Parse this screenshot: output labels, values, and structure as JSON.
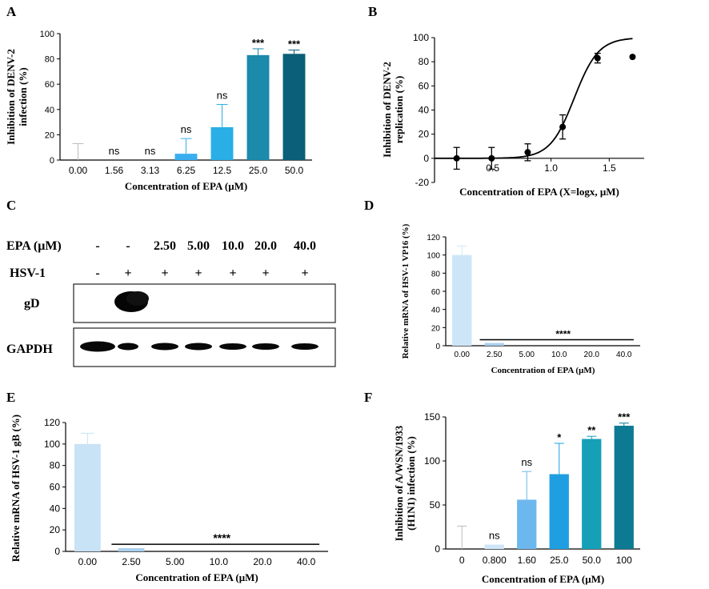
{
  "panels": {
    "A": "A",
    "B": "B",
    "C": "C",
    "D": "D",
    "E": "E",
    "F": "F"
  },
  "chart_data": [
    {
      "id": "A",
      "type": "bar",
      "ylabel": [
        "Inhibition of DENV-2",
        "infection (%)"
      ],
      "xlabel": "Concentration of EPA (μM)",
      "categories": [
        "0.00",
        "1.56",
        "3.13",
        "6.25",
        "12.5",
        "25.0",
        "50.0"
      ],
      "values": [
        0,
        0,
        0,
        5,
        26,
        83,
        84
      ],
      "errors": [
        13,
        0,
        0,
        12,
        18,
        5,
        3
      ],
      "significance": [
        "",
        "ns",
        "ns",
        "ns",
        "ns",
        "***",
        "***"
      ],
      "colors": [
        "#ffffff",
        "#ffffff",
        "#ffffff",
        "#3aaef0",
        "#29aee6",
        "#1b8aab",
        "#0b5f78"
      ],
      "ylim": [
        0,
        100
      ],
      "yticks": [
        0,
        20,
        40,
        60,
        80,
        100
      ]
    },
    {
      "id": "B",
      "type": "scatter",
      "ylabel": [
        "Inhibition of DENV-2",
        "replication (%)"
      ],
      "xlabel": "Concentration of EPA (X=logx, μM)",
      "x": [
        0.19,
        0.49,
        0.8,
        1.1,
        1.4,
        1.7
      ],
      "y": [
        0,
        0,
        5,
        26,
        83,
        84
      ],
      "errors": [
        9,
        9,
        7,
        10,
        4,
        0
      ],
      "fit": {
        "bottom": 0,
        "top": 100,
        "logIC50": 1.2,
        "hillslope": 4.2
      },
      "xlim": [
        0,
        1.8
      ],
      "ylim": [
        -20,
        100
      ],
      "xticks": [
        "0.5",
        "1.0",
        "1.5"
      ],
      "yticks": [
        -20,
        0,
        20,
        40,
        60,
        80,
        100
      ]
    },
    {
      "id": "D",
      "type": "bar",
      "ylabel": [
        "Relative mRNA of  HSV-1 VP16 (%)"
      ],
      "xlabel": "Concentration of EPA (μM)",
      "categories": [
        "0.00",
        "2.50",
        "5.00",
        "10.0",
        "20.0",
        "40.0"
      ],
      "values": [
        100,
        3,
        0,
        0,
        0,
        0
      ],
      "errors": [
        10,
        0,
        0,
        0,
        0,
        0
      ],
      "colors": [
        "#cde6f7",
        "#a9cfee",
        "#a9cfee",
        "#a9cfee",
        "#a9cfee",
        "#a9cfee"
      ],
      "significance_line": "****",
      "ylim": [
        0,
        120
      ],
      "yticks": [
        0,
        20,
        40,
        60,
        80,
        100,
        120
      ]
    },
    {
      "id": "E",
      "type": "bar",
      "ylabel": [
        "Relative mRNA of  HSV-1 gB (%)"
      ],
      "xlabel": "Concentration of EPA (μM)",
      "categories": [
        "0.00",
        "2.50",
        "5.00",
        "10.0",
        "20.0",
        "40.0"
      ],
      "values": [
        100,
        3,
        0,
        0,
        0,
        0
      ],
      "errors": [
        10,
        0,
        0,
        0,
        0,
        0
      ],
      "colors": [
        "#c8e2f6",
        "#a9cfee",
        "#a9cfee",
        "#a9cfee",
        "#a9cfee",
        "#a9cfee"
      ],
      "significance_line": "****",
      "ylim": [
        0,
        120
      ],
      "yticks": [
        0,
        20,
        40,
        60,
        80,
        100,
        120
      ]
    },
    {
      "id": "F",
      "type": "bar",
      "ylabel": [
        "Inhibition of A/WSN/1933",
        "(H1N1) infection (%)"
      ],
      "xlabel": "Concentration of EPA (μM)",
      "categories": [
        "0",
        "0.800",
        "1.60",
        "25.0",
        "50.0",
        "100"
      ],
      "values": [
        0,
        5,
        56,
        85,
        125,
        140
      ],
      "errors": [
        26,
        0,
        32,
        35,
        3,
        3
      ],
      "significance": [
        "",
        "ns",
        "ns",
        "*",
        "**",
        "***"
      ],
      "colors": [
        "#ffffff",
        "#cfe6f8",
        "#6cb8ee",
        "#1f9fe2",
        "#16a0b8",
        "#0d7a93"
      ],
      "ylim": [
        0,
        150
      ],
      "yticks": [
        0,
        50,
        100,
        150
      ]
    }
  ],
  "western_blot": {
    "epa_label": "EPA (μM)",
    "epa_values": [
      "-",
      "-",
      "2.50",
      "5.00",
      "10.0",
      "20.0",
      "40.0"
    ],
    "hsv_label": "HSV-1",
    "hsv_values": [
      "-",
      "+",
      "+",
      "+",
      "+",
      "+",
      "+"
    ],
    "gd_label": "gD",
    "gapdh_label": "GAPDH"
  }
}
